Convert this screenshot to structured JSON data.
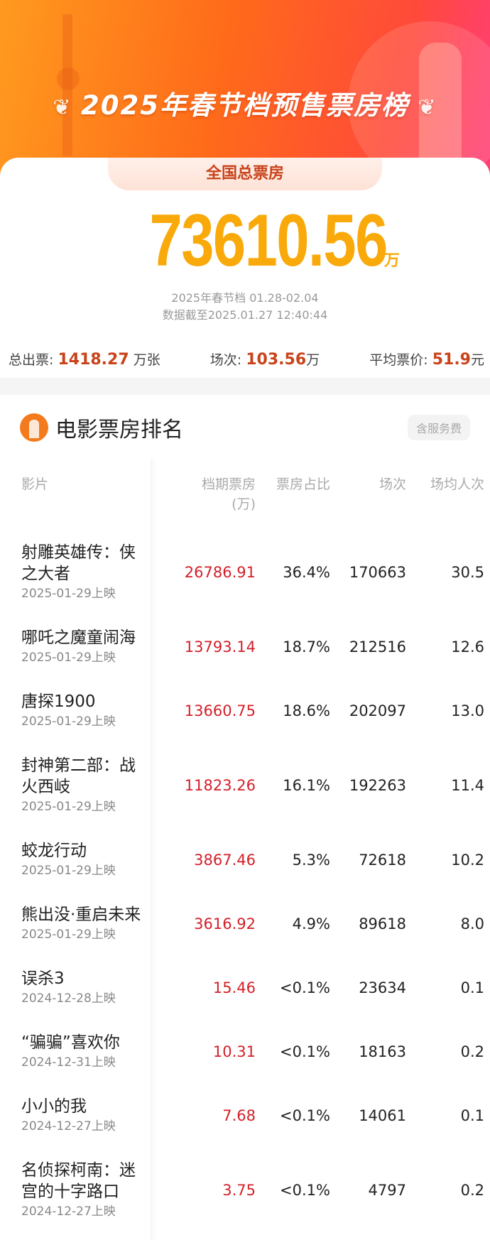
{
  "banner": {
    "title": "2025年春节档预售票房榜"
  },
  "summary": {
    "tab_label": "全国总票房",
    "total": "73610.56",
    "total_unit": "万",
    "period": "2025年春节档 01.28-02.04",
    "updated": "数据截至2025.01.27 12:40:44",
    "tickets_label": "总出票:",
    "tickets_value": "1418.27",
    "tickets_unit": "万张",
    "shows_label": "场次:",
    "shows_value": "103.56",
    "shows_unit": "万",
    "price_label": "平均票价:",
    "price_value": "51.9",
    "price_unit": "元"
  },
  "ranking": {
    "title": "电影票房排名",
    "fee_badge": "含服务费",
    "headers": {
      "film": "影片",
      "box_office": "档期票房",
      "box_office_unit": "(万)",
      "share": "票房占比",
      "shows": "场次",
      "avg_attendance": "场均人次"
    },
    "rows": [
      {
        "name": "射雕英雄传：侠之大者",
        "date": "2025-01-29上映",
        "box": "26786.91",
        "share": "36.4%",
        "shows": "170663",
        "avg": "30.5"
      },
      {
        "name": "哪吒之魔童闹海",
        "date": "2025-01-29上映",
        "box": "13793.14",
        "share": "18.7%",
        "shows": "212516",
        "avg": "12.6"
      },
      {
        "name": "唐探1900",
        "date": "2025-01-29上映",
        "box": "13660.75",
        "share": "18.6%",
        "shows": "202097",
        "avg": "13.0"
      },
      {
        "name": "封神第二部：战火西岐",
        "date": "2025-01-29上映",
        "box": "11823.26",
        "share": "16.1%",
        "shows": "192263",
        "avg": "11.4"
      },
      {
        "name": "蛟龙行动",
        "date": "2025-01-29上映",
        "box": "3867.46",
        "share": "5.3%",
        "shows": "72618",
        "avg": "10.2"
      },
      {
        "name": "熊出没·重启未来",
        "date": "2025-01-29上映",
        "box": "3616.92",
        "share": "4.9%",
        "shows": "89618",
        "avg": "8.0"
      },
      {
        "name": "误杀3",
        "date": "2024-12-28上映",
        "box": "15.46",
        "share": "<0.1%",
        "shows": "23634",
        "avg": "0.1"
      },
      {
        "name": "“骗骗”喜欢你",
        "date": "2024-12-31上映",
        "box": "10.31",
        "share": "<0.1%",
        "shows": "18163",
        "avg": "0.2"
      },
      {
        "name": "小小的我",
        "date": "2024-12-27上映",
        "box": "7.68",
        "share": "<0.1%",
        "shows": "14061",
        "avg": "0.1"
      },
      {
        "name": "名侦探柯南：迷宫的十字路口",
        "date": "2024-12-27上映",
        "box": "3.75",
        "share": "<0.1%",
        "shows": "4797",
        "avg": "0.2"
      }
    ]
  },
  "colors": {
    "accent": "#f9a90a",
    "box_office": "#d4202a",
    "stat_value": "#c8431a"
  }
}
